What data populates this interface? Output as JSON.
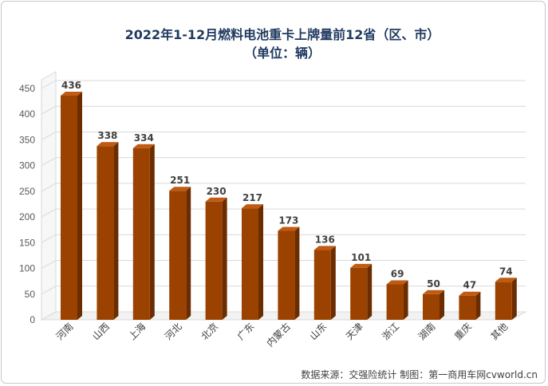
{
  "chart_data": {
    "type": "bar",
    "title": "2022年1-12月燃料电池重卡上牌量前12省（区、市）",
    "subtitle": "（单位：辆）",
    "categories": [
      "河南",
      "山西",
      "上海",
      "河北",
      "北京",
      "广东",
      "内蒙古",
      "山东",
      "天津",
      "浙江",
      "湖南",
      "重庆",
      "其他"
    ],
    "values": [
      436,
      338,
      334,
      251,
      230,
      217,
      173,
      136,
      101,
      69,
      50,
      47,
      74
    ],
    "ylim": [
      0,
      450
    ],
    "yticks": [
      0,
      50,
      100,
      150,
      200,
      250,
      300,
      350,
      400,
      450
    ],
    "grid": true,
    "bar_color": "#9c4200",
    "xlabel": "",
    "ylabel": ""
  },
  "footer": {
    "source": "数据来源：交强险统计   制图：第一商用车网cvworld.cn"
  }
}
